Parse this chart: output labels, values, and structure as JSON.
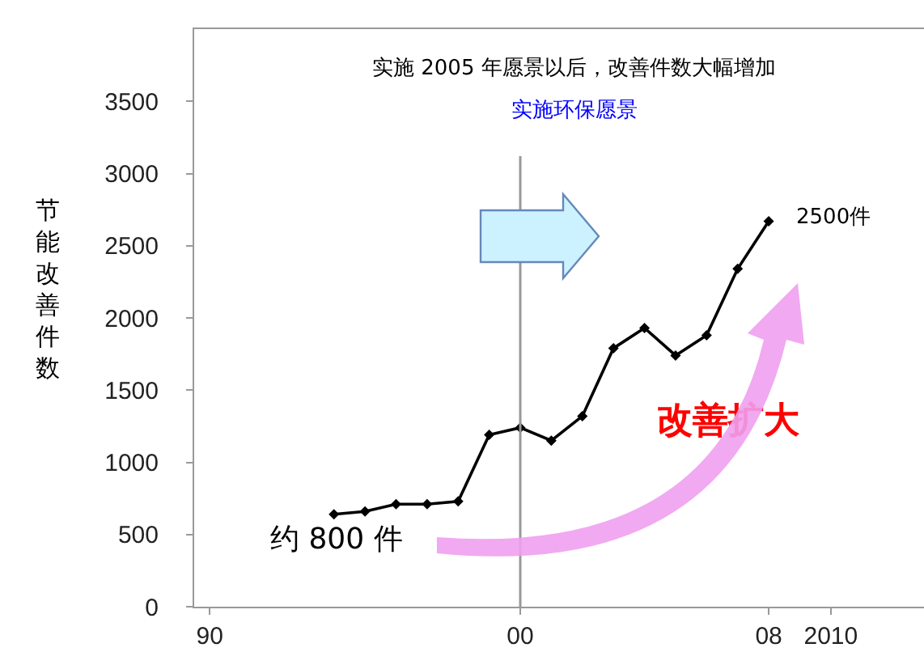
{
  "chart_data": {
    "type": "line",
    "title": "实施 2005 年愿景以后，改善件数大幅增加",
    "subtitle": "实施环保愿景",
    "ylabel": "节能改善件数",
    "x": [
      1994,
      1995,
      1996,
      1997,
      1998,
      1999,
      2000,
      2001,
      2002,
      2003,
      2004,
      2005,
      2006,
      2007,
      2008
    ],
    "series": [
      {
        "color": "#000000",
        "values": [
          640,
          660,
          710,
          710,
          730,
          1190,
          1240,
          1150,
          1320,
          1790,
          1930,
          1740,
          1880,
          2340,
          2670
        ]
      }
    ],
    "xlim": [
      1989.5,
      2013
    ],
    "xticks": [
      {
        "value": 1990,
        "label": "90"
      },
      {
        "value": 2000,
        "label": "00"
      },
      {
        "value": 2008,
        "label": "08"
      },
      2010
    ],
    "ylim": [
      0,
      4000
    ],
    "yticks": [
      0,
      500,
      1000,
      1500,
      2000,
      2500,
      3000,
      3500
    ],
    "ref_lines": [
      {
        "axis": "x",
        "value": 2000,
        "color": "#999999"
      }
    ],
    "annotations": [
      "2500件",
      "约 800 件",
      "改善扩大"
    ],
    "grid": false,
    "marker": "diamond",
    "line_style": "solid"
  }
}
